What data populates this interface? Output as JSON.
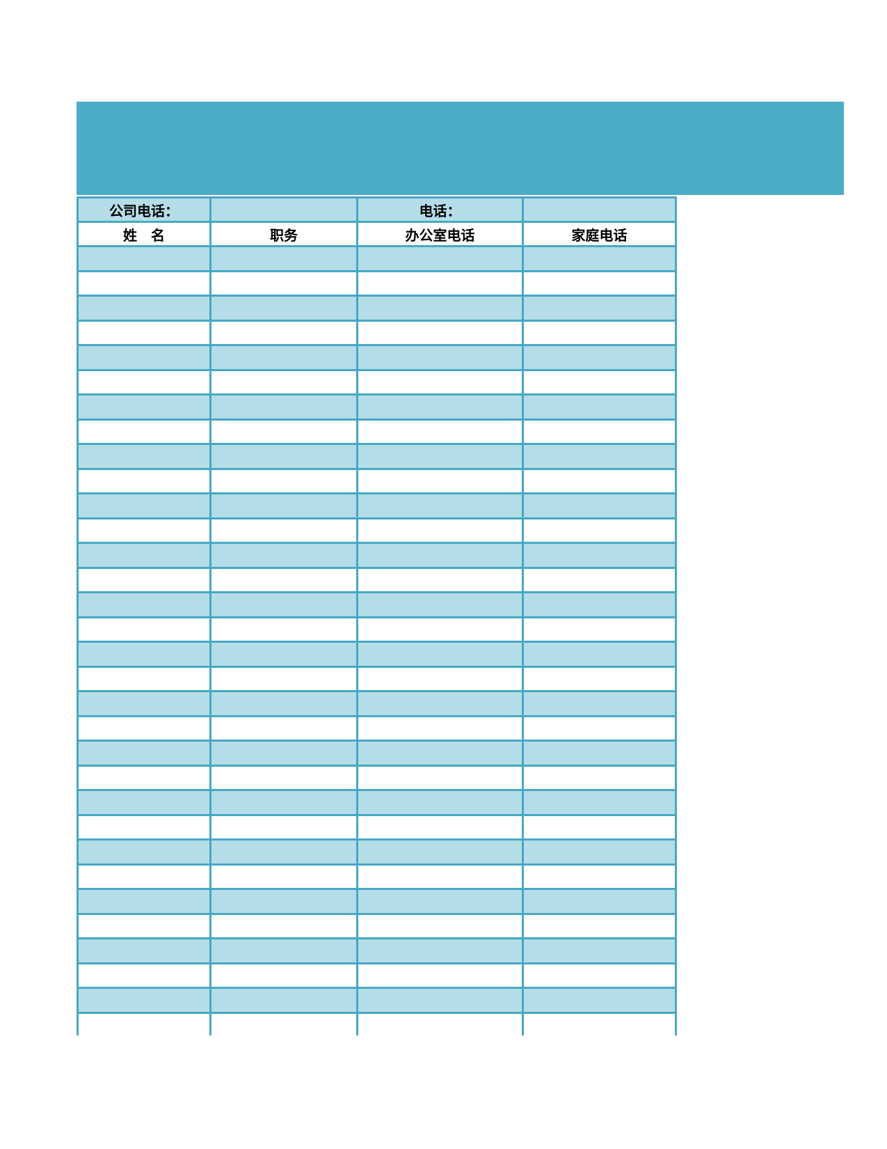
{
  "banner": {
    "title_text": "",
    "color": "#4BACC6"
  },
  "info_row": {
    "company_phone_label": "公司电话：",
    "phone_label": "电话：",
    "company_phone_value": "",
    "phone_value": ""
  },
  "table": {
    "columns": [
      "姓　名",
      "职务",
      "办公室电话",
      "家庭电话"
    ],
    "empty_data_row_count": 32
  },
  "colors": {
    "page_background": "#ffffff",
    "banner": "#4BACC6",
    "grid_border": "#46A8C4",
    "row_highlight": "#B5DDE7",
    "header_text": "#000000"
  }
}
